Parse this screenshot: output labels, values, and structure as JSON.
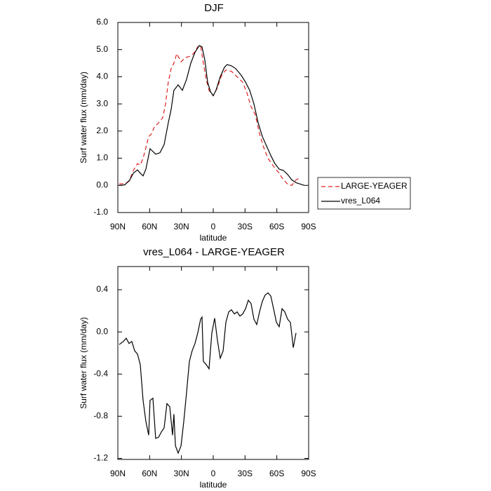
{
  "chart_data": [
    {
      "type": "line",
      "title": "DJF",
      "x_label": "latitude",
      "y_label": "Surf water flux (mm/day)",
      "xlim": [
        90,
        -90
      ],
      "xticks": [
        {
          "value": 90,
          "label": "90N"
        },
        {
          "value": 60,
          "label": "60N"
        },
        {
          "value": 30,
          "label": "30N"
        },
        0,
        {
          "value": -30,
          "label": "30S"
        },
        {
          "value": -60,
          "label": "60S"
        },
        {
          "value": -90,
          "label": "90S"
        }
      ],
      "ylim": [
        -1,
        6
      ],
      "yticks": [
        {
          "value": -1,
          "label": "-1.0"
        },
        {
          "value": 0,
          "label": "0.0"
        },
        {
          "value": 1,
          "label": "1.0"
        },
        {
          "value": 2,
          "label": "2.0"
        },
        {
          "value": 3,
          "label": "3.0"
        },
        {
          "value": 4,
          "label": "4.0"
        },
        {
          "value": 5,
          "label": "5.0"
        },
        {
          "value": 6,
          "label": "6.0"
        }
      ],
      "legend": "outside-right",
      "series": [
        {
          "name": "LARGE-YEAGER",
          "color": "#e02020",
          "dash": "dashed",
          "x": [
            88.7,
            83.4,
            79.4,
            75.4,
            71.5,
            68.8,
            66.2,
            63.5,
            60.9,
            58.2,
            55.6,
            51.6,
            47.6,
            45.0,
            42.4,
            39.7,
            37.1,
            34.4,
            30.4,
            26.5,
            22.5,
            18.5,
            14.6,
            11.9,
            9.3,
            6.6,
            4.0,
            0,
            -4.0,
            -7.9,
            -11.9,
            -17.2,
            -22.5,
            -27.8,
            -31.8,
            -35.7,
            -39.7,
            -43.7,
            -47.6,
            -51.6,
            -56.9,
            -62.2,
            -66.2,
            -70.2,
            -74.1,
            -78.1,
            -80.7
          ],
          "values": [
            0.05,
            0.07,
            0.15,
            0.55,
            0.8,
            0.75,
            1.0,
            1.4,
            1.8,
            1.9,
            2.15,
            2.3,
            2.5,
            3.0,
            3.8,
            4.3,
            4.5,
            4.85,
            4.55,
            4.7,
            4.75,
            4.85,
            5.1,
            5.15,
            4.5,
            3.9,
            3.5,
            3.3,
            3.6,
            4.05,
            4.25,
            4.2,
            4.0,
            3.8,
            3.4,
            2.9,
            2.6,
            1.9,
            1.4,
            1.0,
            0.7,
            0.45,
            0.2,
            0.05,
            0.0,
            0.2,
            0.25
          ]
        },
        {
          "name": "vres_L064",
          "color": "#000000",
          "dash": "solid",
          "x": [
            88.7,
            83.4,
            78.7,
            75.4,
            71.5,
            68.8,
            66.2,
            63.5,
            59.6,
            56.9,
            54.3,
            50.3,
            46.3,
            42.4,
            39.7,
            37.1,
            33.1,
            29.1,
            25.2,
            21.2,
            17.2,
            13.2,
            10.6,
            7.9,
            5.3,
            2.6,
            0,
            -2.6,
            -6.6,
            -10.6,
            -13.2,
            -17.2,
            -21.2,
            -26.5,
            -30.5,
            -34.4,
            -38.4,
            -42.4,
            -46.3,
            -50.3,
            -54.3,
            -58.2,
            -62.2,
            -66.2,
            -70.2,
            -74.1,
            -78.1,
            -82.1,
            -86.0
          ],
          "values": [
            0.0,
            0.02,
            0.2,
            0.45,
            0.57,
            0.45,
            0.35,
            0.6,
            1.35,
            1.25,
            1.15,
            1.2,
            1.5,
            2.3,
            2.8,
            3.5,
            3.7,
            3.5,
            3.9,
            4.5,
            4.9,
            5.15,
            5.1,
            4.6,
            3.8,
            3.45,
            3.3,
            3.5,
            4.0,
            4.35,
            4.45,
            4.4,
            4.3,
            4.05,
            3.8,
            3.5,
            3.0,
            2.3,
            1.8,
            1.45,
            1.1,
            0.8,
            0.6,
            0.55,
            0.4,
            0.2,
            0.1,
            0.05,
            0.0
          ]
        }
      ]
    },
    {
      "type": "line",
      "title": "vres_L064 - LARGE-YEAGER",
      "x_label": "latitude",
      "y_label": "Surf water flux (mm/day)",
      "xlim": [
        90,
        -90
      ],
      "xticks": [
        {
          "value": 90,
          "label": "90N"
        },
        {
          "value": 60,
          "label": "60N"
        },
        {
          "value": 30,
          "label": "30N"
        },
        0,
        {
          "value": -30,
          "label": "30S"
        },
        {
          "value": -60,
          "label": "60S"
        },
        {
          "value": -90,
          "label": "90S"
        }
      ],
      "ylim": [
        -1.21,
        0.62
      ],
      "yticks": [
        -1.2,
        -0.8,
        -0.4,
        {
          "value": 0,
          "label": "0.0"
        },
        0.4
      ],
      "color": "#000000",
      "x": [
        88.7,
        84.7,
        82.1,
        79.4,
        76.8,
        74.1,
        71.5,
        68.8,
        66.2,
        63.5,
        60.9,
        59.6,
        56.9,
        54.3,
        51.6,
        49.0,
        46.3,
        43.7,
        41.0,
        38.4,
        37.1,
        35.7,
        33.1,
        30.4,
        27.8,
        25.2,
        22.5,
        19.9,
        17.2,
        14.6,
        11.9,
        10.6,
        9.3,
        6.6,
        4.0,
        1.3,
        -1.3,
        -4.0,
        -6.6,
        -9.3,
        -11.9,
        -14.6,
        -17.2,
        -19.9,
        -22.5,
        -25.2,
        -27.8,
        -30.5,
        -33.1,
        -35.7,
        -38.4,
        -41.0,
        -43.7,
        -46.3,
        -49.0,
        -51.6,
        -54.3,
        -56.9,
        -59.6,
        -62.2,
        -64.9,
        -67.5,
        -70.2,
        -72.8,
        -75.5,
        -78.1
      ],
      "values": [
        -0.12,
        -0.09,
        -0.06,
        -0.11,
        -0.09,
        -0.18,
        -0.21,
        -0.31,
        -0.65,
        -0.85,
        -0.98,
        -0.65,
        -0.63,
        -1.01,
        -1.0,
        -0.95,
        -0.91,
        -0.68,
        -0.71,
        -0.98,
        -0.78,
        -1.08,
        -1.15,
        -1.08,
        -0.85,
        -0.58,
        -0.28,
        -0.18,
        -0.11,
        -0.01,
        0.12,
        0.14,
        -0.28,
        -0.31,
        -0.35,
        -0.01,
        0.13,
        -0.08,
        -0.25,
        -0.18,
        0.09,
        0.19,
        0.21,
        0.17,
        0.19,
        0.15,
        0.17,
        0.22,
        0.3,
        0.27,
        0.12,
        0.07,
        0.19,
        0.29,
        0.35,
        0.37,
        0.34,
        0.22,
        0.09,
        0.05,
        0.22,
        0.19,
        0.12,
        0.09,
        -0.15,
        -0.01
      ]
    }
  ]
}
